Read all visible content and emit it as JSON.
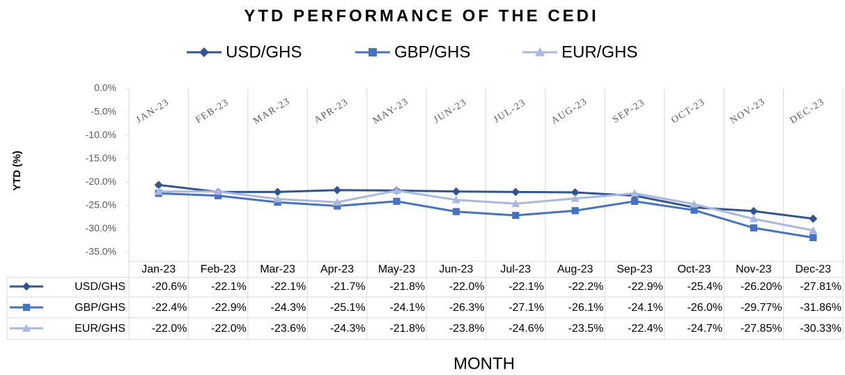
{
  "chart_data": {
    "type": "line",
    "title": "YTD PERFORMANCE OF THE CEDI",
    "x_label": "MONTH",
    "y_label": "YTD (%)",
    "categories": [
      "Jan-23",
      "Feb-23",
      "Mar-23",
      "Apr-23",
      "May-23",
      "Jun-23",
      "Jul-23",
      "Aug-23",
      "Sep-23",
      "Oct-23",
      "Nov-23",
      "Dec-23"
    ],
    "ylim": [
      -35,
      0
    ],
    "yticks": [
      {
        "value": 0,
        "label": "0.0%"
      },
      {
        "value": -5,
        "label": "-5.0%"
      },
      {
        "value": -10,
        "label": "-10.0%"
      },
      {
        "value": -15,
        "label": "-15.0%"
      },
      {
        "value": -20,
        "label": "-20.0%"
      },
      {
        "value": -25,
        "label": "-25.0%"
      },
      {
        "value": -30,
        "label": "-30.0%"
      },
      {
        "value": -35,
        "label": "-35.0%"
      }
    ],
    "legend": "top",
    "series": [
      {
        "name": "USD/GHS",
        "color": "#2f5597",
        "marker": "diamond",
        "values": [
          -20.6,
          -22.1,
          -22.1,
          -21.7,
          -21.8,
          -22.0,
          -22.1,
          -22.2,
          -22.9,
          -25.4,
          -26.2,
          -27.81
        ],
        "value_labels": [
          "-20.6%",
          "-22.1%",
          "-22.1%",
          "-21.7%",
          "-21.8%",
          "-22.0%",
          "-22.1%",
          "-22.2%",
          "-22.9%",
          "-25.4%",
          "-26.20%",
          "-27.81%"
        ]
      },
      {
        "name": "GBP/GHS",
        "color": "#4472c4",
        "marker": "square",
        "values": [
          -22.4,
          -22.9,
          -24.3,
          -25.1,
          -24.1,
          -26.3,
          -27.1,
          -26.1,
          -24.1,
          -26.0,
          -29.77,
          -31.86
        ],
        "value_labels": [
          "-22.4%",
          "-22.9%",
          "-24.3%",
          "-25.1%",
          "-24.1%",
          "-26.3%",
          "-27.1%",
          "-26.1%",
          "-24.1%",
          "-26.0%",
          "-29.77%",
          "-31.86%"
        ]
      },
      {
        "name": "EUR/GHS",
        "color": "#a9b8e0",
        "marker": "triangle",
        "values": [
          -22.0,
          -22.0,
          -23.6,
          -24.3,
          -21.8,
          -23.8,
          -24.6,
          -23.5,
          -22.4,
          -24.7,
          -27.85,
          -30.33
        ],
        "value_labels": [
          "-22.0%",
          "-22.0%",
          "-23.6%",
          "-24.3%",
          "-21.8%",
          "-23.8%",
          "-24.6%",
          "-23.5%",
          "-22.4%",
          "-24.7%",
          "-27.85%",
          "-30.33%"
        ]
      }
    ]
  }
}
